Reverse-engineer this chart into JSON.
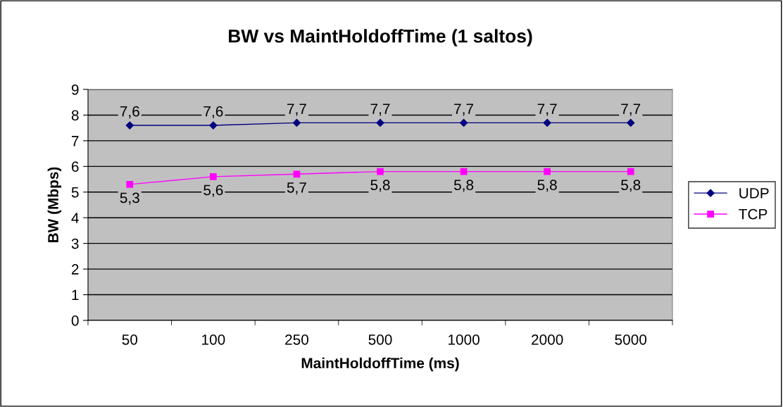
{
  "chart_data": {
    "type": "line",
    "title": "BW vs MaintHoldoffTime (1 saltos)",
    "xlabel": "MaintHoldoffTime (ms)",
    "ylabel": "BW (Mbps)",
    "categories": [
      "50",
      "100",
      "250",
      "500",
      "1000",
      "2000",
      "5000"
    ],
    "series": [
      {
        "name": "UDP",
        "color": "#000080",
        "marker": "diamond",
        "values": [
          7.6,
          7.6,
          7.7,
          7.7,
          7.7,
          7.7,
          7.7
        ],
        "value_labels": [
          "7,6",
          "7,6",
          "7,7",
          "7,7",
          "7,7",
          "7,7",
          "7,7"
        ]
      },
      {
        "name": "TCP",
        "color": "#ff00ff",
        "marker": "square",
        "values": [
          5.3,
          5.6,
          5.7,
          5.8,
          5.8,
          5.8,
          5.8
        ],
        "value_labels": [
          "5,3",
          "5,6",
          "5,7",
          "5,8",
          "5,8",
          "5,8",
          "5,8"
        ]
      }
    ],
    "ylim": [
      0,
      9
    ],
    "yticks": [
      0,
      1,
      2,
      3,
      4,
      5,
      6,
      7,
      8,
      9
    ],
    "grid": "y",
    "legend": "right",
    "line_style": "solid"
  }
}
